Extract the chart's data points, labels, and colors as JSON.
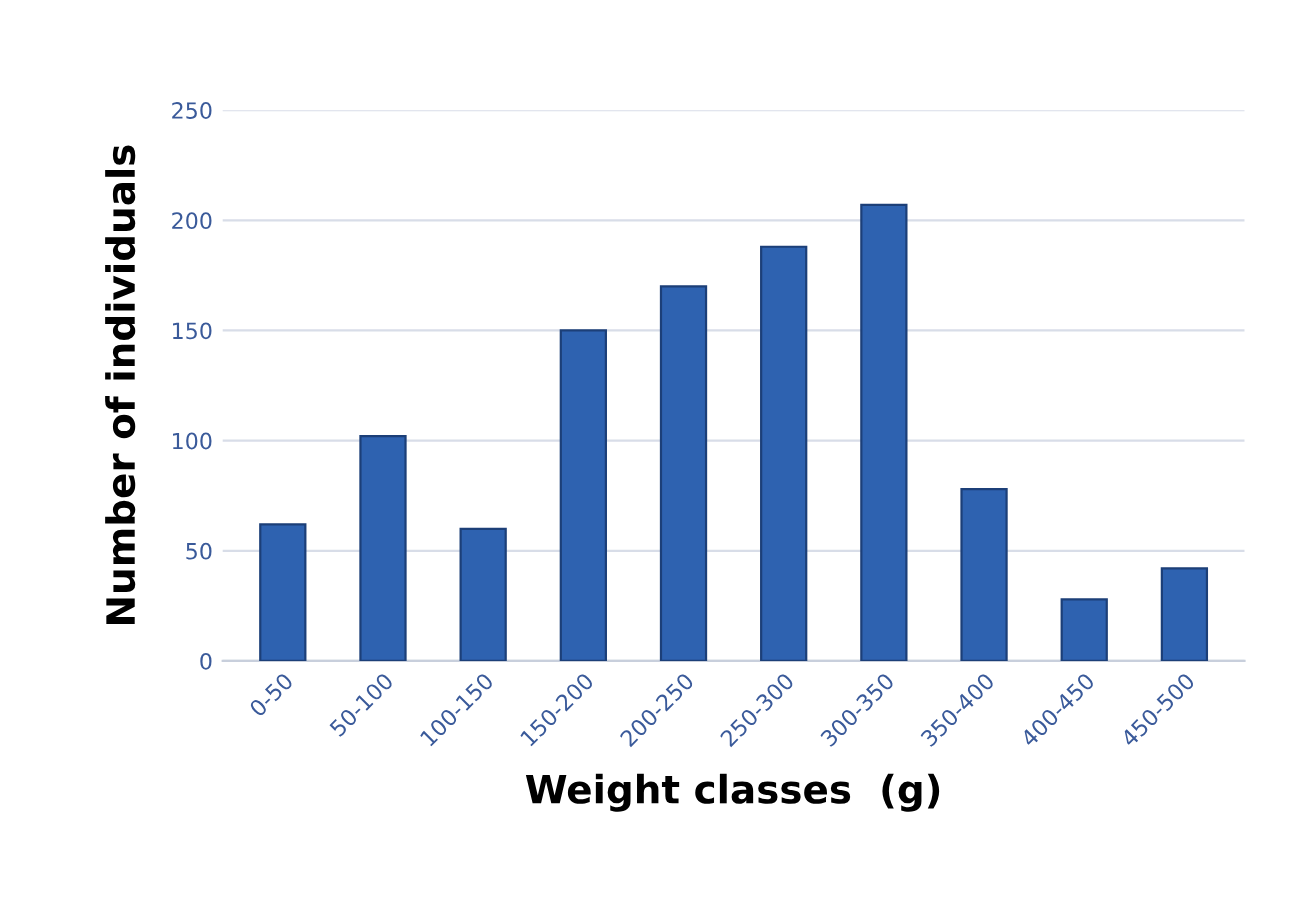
{
  "chart_data": {
    "type": "bar",
    "xlabel": "Weight classes  (g)",
    "ylabel": "Number of individuals",
    "categories": [
      "0-50",
      "50-100",
      "100-150",
      "150-200",
      "200-250",
      "250-300",
      "300-350",
      "350-400",
      "400-450",
      "450-500"
    ],
    "values": [
      62,
      102,
      60,
      150,
      170,
      188,
      207,
      78,
      28,
      42
    ],
    "color": "#2e62b0",
    "ylim": [
      0,
      250
    ],
    "yticks": [
      0,
      50,
      100,
      150,
      200,
      250
    ],
    "grid": "y"
  }
}
